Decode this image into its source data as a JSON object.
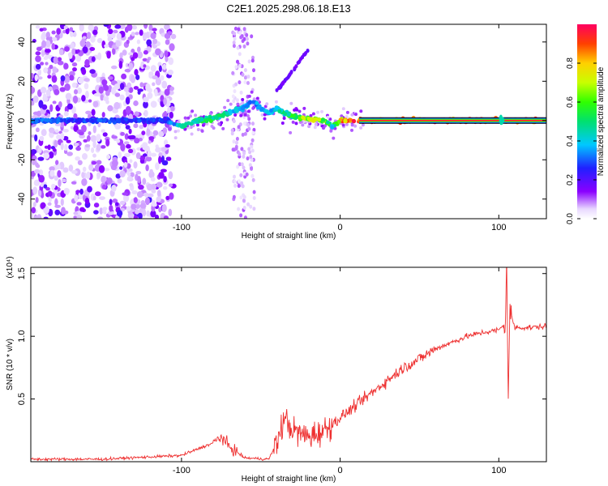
{
  "title": "C2E1.2025.298.06.18.E13",
  "colorbar": {
    "label": "Normalized spectral amplitude",
    "ticks": [
      "0.0",
      "0.2",
      "0.4",
      "0.6",
      "0.8"
    ],
    "tick_values": [
      0.0,
      0.2,
      0.4,
      0.6,
      0.8
    ],
    "range": [
      0,
      1
    ]
  },
  "chart_data": [
    {
      "type": "heatmap",
      "title": "C2E1.2025.298.06.18.E13",
      "xlabel": "Height of straight line (km)",
      "ylabel": "Frequency (Hz)",
      "xlim": [
        -195,
        130
      ],
      "ylim": [
        -50,
        49
      ],
      "xticks": [
        -100,
        0,
        100
      ],
      "xtick_labels": [
        "-100",
        "0",
        "100"
      ],
      "yticks": [
        -40,
        -20,
        0,
        20,
        40
      ],
      "ytick_labels": [
        "-40",
        "-20",
        "0",
        "20",
        "40"
      ],
      "colorscale": "rainbow (white-violet-blue-cyan-green-yellow-red)",
      "ridge": {
        "x": [
          -195,
          -110,
          -100,
          -90,
          -80,
          -70,
          -60,
          -55,
          -50,
          -45,
          -40,
          -30,
          -20,
          -10,
          -5,
          0,
          10,
          20,
          60,
          100,
          104,
          130
        ],
        "freq": [
          0,
          0,
          -3,
          0,
          1,
          4,
          7,
          10,
          6,
          4,
          6,
          2,
          1,
          0,
          -3,
          0,
          0,
          0,
          0,
          0,
          0,
          0
        ],
        "amplitude": [
          0.35,
          0.3,
          0.5,
          0.55,
          0.6,
          0.5,
          0.45,
          0.4,
          0.4,
          0.45,
          0.5,
          0.6,
          0.8,
          0.75,
          0.5,
          0.95,
          1.0,
          1.0,
          1.0,
          1.0,
          0.9,
          1.0
        ]
      },
      "secondary_branch": {
        "x": [
          -40,
          -35,
          -30,
          -25,
          -20
        ],
        "freq": [
          15,
          20,
          25,
          31,
          36
        ]
      }
    },
    {
      "type": "line",
      "xlabel": "Height of straight line (km)",
      "ylabel": "SNR (10 * v/v)",
      "scale_note": "(x10⁴)",
      "xlim": [
        -195,
        130
      ],
      "ylim": [
        0,
        1.55
      ],
      "xticks": [
        -100,
        0,
        100
      ],
      "xtick_labels": [
        "-100",
        "0",
        "100"
      ],
      "yticks": [
        0.5,
        1.0,
        1.5
      ],
      "ytick_labels": [
        "0.5",
        "1.0",
        "1.5"
      ],
      "color": "#ee3030",
      "series": [
        {
          "name": "SNR",
          "x": [
            -195,
            -150,
            -100,
            -90,
            -80,
            -75,
            -70,
            -60,
            -45,
            -40,
            -35,
            -30,
            -25,
            -20,
            -10,
            0,
            10,
            20,
            30,
            40,
            50,
            60,
            70,
            80,
            90,
            100,
            104,
            105,
            106,
            107,
            110,
            120,
            130
          ],
          "values": [
            0.02,
            0.02,
            0.05,
            0.1,
            0.15,
            0.2,
            0.12,
            0.03,
            0.02,
            0.15,
            0.35,
            0.25,
            0.22,
            0.2,
            0.25,
            0.35,
            0.45,
            0.55,
            0.65,
            0.75,
            0.82,
            0.9,
            0.95,
            1.0,
            1.03,
            1.05,
            1.1,
            1.55,
            0.55,
            1.2,
            1.07,
            1.07,
            1.08
          ]
        }
      ]
    }
  ]
}
